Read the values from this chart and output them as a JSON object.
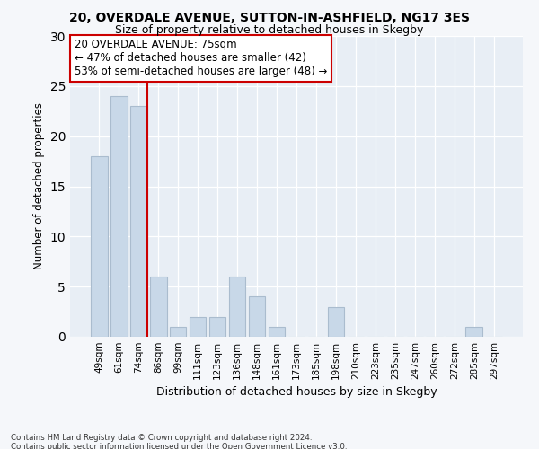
{
  "title1": "20, OVERDALE AVENUE, SUTTON-IN-ASHFIELD, NG17 3ES",
  "title2": "Size of property relative to detached houses in Skegby",
  "xlabel": "Distribution of detached houses by size in Skegby",
  "ylabel": "Number of detached properties",
  "categories": [
    "49sqm",
    "61sqm",
    "74sqm",
    "86sqm",
    "99sqm",
    "111sqm",
    "123sqm",
    "136sqm",
    "148sqm",
    "161sqm",
    "173sqm",
    "185sqm",
    "198sqm",
    "210sqm",
    "223sqm",
    "235sqm",
    "247sqm",
    "260sqm",
    "272sqm",
    "285sqm",
    "297sqm"
  ],
  "values": [
    18,
    24,
    23,
    6,
    1,
    2,
    2,
    6,
    4,
    1,
    0,
    0,
    3,
    0,
    0,
    0,
    0,
    0,
    0,
    1,
    0
  ],
  "bar_color": "#c8d8e8",
  "bar_edge_color": "#aabcce",
  "vline_index": 2,
  "vline_color": "#cc0000",
  "annotation_text": "20 OVERDALE AVENUE: 75sqm\n← 47% of detached houses are smaller (42)\n53% of semi-detached houses are larger (48) →",
  "annotation_box_color": "white",
  "annotation_box_edge_color": "#cc0000",
  "ylim": [
    0,
    30
  ],
  "yticks": [
    0,
    5,
    10,
    15,
    20,
    25,
    30
  ],
  "footer1": "Contains HM Land Registry data © Crown copyright and database right 2024.",
  "footer2": "Contains public sector information licensed under the Open Government Licence v3.0.",
  "bg_color": "#f5f7fa",
  "plot_bg_color": "#e8eef5"
}
